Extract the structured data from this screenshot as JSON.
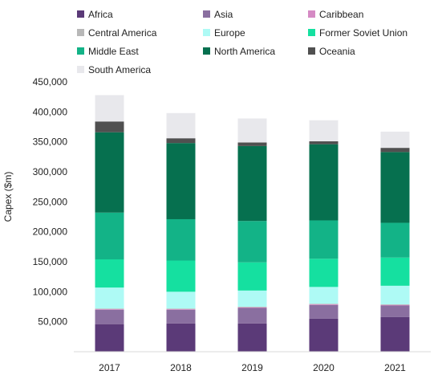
{
  "chart_data": {
    "type": "bar",
    "stacked": true,
    "title": "",
    "xlabel": "",
    "ylabel": "Capex ($m)",
    "ylim": [
      0,
      450000
    ],
    "yticks": [
      50000,
      100000,
      150000,
      200000,
      250000,
      300000,
      350000,
      400000,
      450000
    ],
    "ytick_labels": [
      "50,000",
      "100,000",
      "150,000",
      "200,000",
      "250,000",
      "300,000",
      "350,000",
      "400,000",
      "450,000"
    ],
    "grid": false,
    "legend_position": "top",
    "categories": [
      "2017",
      "2018",
      "2019",
      "2020",
      "2021"
    ],
    "series": [
      {
        "name": "Africa",
        "color": "#5b3a78",
        "values": [
          46000,
          47000,
          47000,
          55000,
          58000
        ]
      },
      {
        "name": "Asia",
        "color": "#8a6fa0",
        "values": [
          24000,
          23000,
          26000,
          23000,
          19000
        ]
      },
      {
        "name": "Caribbean",
        "color": "#d58ac4",
        "values": [
          1000,
          1000,
          1000,
          1000,
          1000
        ]
      },
      {
        "name": "Central America",
        "color": "#b8b8b8",
        "values": [
          1000,
          1000,
          1000,
          1000,
          1000
        ]
      },
      {
        "name": "Europe",
        "color": "#aefaf5",
        "values": [
          35000,
          28000,
          27000,
          28000,
          31000
        ]
      },
      {
        "name": "Former Soviet Union",
        "color": "#15e0a0",
        "values": [
          47000,
          52000,
          47000,
          47000,
          47000
        ]
      },
      {
        "name": "Middle East",
        "color": "#13b387",
        "values": [
          78000,
          69000,
          69000,
          64000,
          58000
        ]
      },
      {
        "name": "North America",
        "color": "#06704f",
        "values": [
          134000,
          127000,
          125000,
          127000,
          118000
        ]
      },
      {
        "name": "Oceania",
        "color": "#505050",
        "values": [
          18000,
          8000,
          6000,
          5000,
          7000
        ]
      },
      {
        "name": "South America",
        "color": "#e8e8ec",
        "values": [
          44000,
          42000,
          40000,
          35000,
          27000
        ]
      }
    ]
  }
}
